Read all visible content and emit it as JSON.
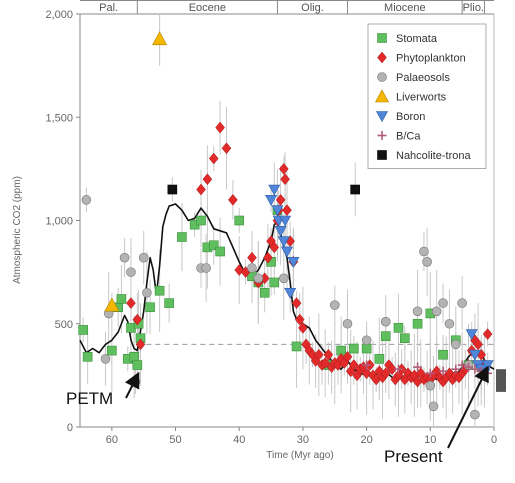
{
  "chart_data": {
    "type": "scatter",
    "xlabel": "Time (Myr ago)",
    "ylabel": "Atmospheric CO2 (ppm)",
    "xlim": [
      65,
      0
    ],
    "ylim": [
      0,
      2000
    ],
    "x_ticks": [
      60,
      50,
      40,
      30,
      20,
      10,
      0
    ],
    "y_ticks": [
      0,
      500,
      1000,
      1500,
      2000
    ],
    "y_tick_labels": [
      "0",
      "500",
      "1,000",
      "1,500",
      "2,000"
    ],
    "grid": false,
    "legend_position": "top-right",
    "epochs": [
      {
        "label": "Pal.",
        "start": 65,
        "end": 56
      },
      {
        "label": "Eocene",
        "start": 56,
        "end": 34
      },
      {
        "label": "Olig.",
        "start": 34,
        "end": 23
      },
      {
        "label": "Miocene",
        "start": 23,
        "end": 5
      },
      {
        "label": "Plio.",
        "start": 5,
        "end": 1.5
      }
    ],
    "reference_line": {
      "y": 400,
      "x_from": 56,
      "x_to": 0,
      "style": "dashed"
    },
    "smooth_curve": {
      "x": [
        65,
        64,
        63,
        62,
        61,
        60,
        59,
        58,
        57.5,
        57,
        56.5,
        56,
        55,
        54.5,
        54,
        53.5,
        53,
        52.5,
        52,
        51.5,
        51,
        50,
        49,
        48,
        47,
        46,
        45,
        44,
        43,
        42,
        41,
        40,
        39,
        38,
        37,
        36,
        35,
        34.5,
        34,
        33.5,
        33,
        32.5,
        32,
        31.5,
        31,
        30,
        29,
        28,
        27,
        26,
        25,
        24,
        23,
        22,
        21,
        20,
        19,
        18,
        17,
        16,
        15,
        14,
        13,
        12,
        11,
        10,
        9,
        8,
        7,
        6,
        5,
        4,
        3,
        2,
        1,
        0
      ],
      "y": [
        420,
        360,
        380,
        360,
        400,
        420,
        460,
        540,
        510,
        420,
        380,
        370,
        560,
        700,
        820,
        760,
        640,
        780,
        970,
        1030,
        1070,
        1080,
        1050,
        1000,
        1010,
        1060,
        1020,
        960,
        950,
        940,
        870,
        800,
        740,
        730,
        760,
        820,
        900,
        980,
        990,
        940,
        870,
        820,
        700,
        560,
        520,
        500,
        480,
        420,
        380,
        340,
        300,
        280,
        320,
        280,
        260,
        250,
        250,
        260,
        270,
        240,
        240,
        240,
        250,
        250,
        240,
        250,
        230,
        240,
        250,
        250,
        290,
        340,
        370,
        350,
        300,
        280
      ]
    },
    "series": [
      {
        "name": "Stomata",
        "marker": "square",
        "color": "#5fbf5f",
        "x": [
          64.5,
          63.8,
          60,
          59,
          58.5,
          57.5,
          57,
          56.5,
          56,
          55.8,
          55.5,
          54,
          52.5,
          51,
          49,
          47,
          46,
          45,
          44,
          43,
          40,
          38,
          37,
          36,
          35,
          34.5,
          34,
          31,
          26,
          24,
          22,
          20,
          18,
          17,
          15,
          14,
          12,
          10,
          8,
          6,
          4,
          2
        ],
        "y": [
          470,
          340,
          370,
          580,
          620,
          330,
          480,
          340,
          300,
          500,
          430,
          580,
          660,
          600,
          920,
          980,
          1000,
          870,
          880,
          850,
          1000,
          730,
          700,
          650,
          800,
          700,
          1050,
          390,
          300,
          370,
          380,
          380,
          330,
          440,
          480,
          430,
          500,
          550,
          350,
          420,
          300,
          290
        ]
      },
      {
        "name": "Phytoplankton",
        "marker": "diamond",
        "color": "#e32a2a",
        "x": [
          57,
          56,
          55.5,
          46,
          45,
          44,
          43,
          42,
          41,
          40,
          39,
          38,
          37,
          36,
          35.5,
          35,
          34.5,
          34,
          33.8,
          33.5,
          33,
          32.8,
          32.5,
          32,
          31.5,
          31,
          30.5,
          30,
          29.5,
          29,
          28.5,
          28,
          27.5,
          27,
          26.5,
          26,
          25.5,
          25,
          24.5,
          24,
          23.5,
          23,
          22.5,
          22,
          21.5,
          21,
          20.5,
          20,
          19.5,
          19,
          18.5,
          18,
          17.5,
          17,
          16.5,
          16,
          15.5,
          15,
          14.5,
          14,
          13.5,
          13,
          12.5,
          12,
          11.5,
          11,
          10.5,
          10,
          9.5,
          9,
          8.5,
          8,
          7.5,
          7,
          6.5,
          6,
          5.5,
          5,
          4.5,
          4,
          3.5,
          3,
          2.5,
          2,
          1.5,
          1
        ],
        "y": [
          600,
          520,
          400,
          1150,
          1200,
          1300,
          1450,
          1350,
          1100,
          760,
          750,
          820,
          700,
          720,
          820,
          900,
          870,
          1000,
          1050,
          1100,
          1250,
          1200,
          1050,
          900,
          800,
          600,
          520,
          480,
          400,
          370,
          350,
          320,
          350,
          300,
          310,
          350,
          290,
          310,
          300,
          330,
          310,
          340,
          270,
          300,
          250,
          280,
          290,
          260,
          300,
          250,
          230,
          270,
          240,
          260,
          300,
          280,
          230,
          250,
          280,
          230,
          260,
          240,
          250,
          220,
          260,
          230,
          240,
          230,
          250,
          270,
          240,
          220,
          240,
          260,
          230,
          250,
          240,
          260,
          280,
          300,
          370,
          420,
          400,
          350,
          300,
          450
        ]
      },
      {
        "name": "Palaeosols",
        "marker": "circle",
        "color": "#b3b3b3",
        "x": [
          64,
          61,
          60.5,
          58,
          57,
          56.3,
          55,
          54.5,
          46,
          45.2,
          38,
          37,
          33,
          25,
          23,
          20,
          17,
          12,
          11,
          10.5,
          10,
          9.5,
          9,
          8,
          7,
          6,
          5,
          4,
          3
        ],
        "y": [
          1100,
          330,
          550,
          820,
          750,
          220,
          820,
          650,
          770,
          770,
          770,
          720,
          720,
          590,
          500,
          420,
          510,
          560,
          850,
          800,
          200,
          100,
          560,
          600,
          500,
          400,
          600,
          300,
          60
        ]
      },
      {
        "name": "Liverworts",
        "marker": "triangle-up",
        "color": "#f5b800",
        "x": [
          60,
          52.5
        ],
        "y": [
          590,
          1880
        ]
      },
      {
        "name": "Boron",
        "marker": "triangle-down",
        "color": "#4f86d9",
        "x": [
          35,
          34.5,
          34,
          33.8,
          33.5,
          33,
          32.8,
          32.5,
          32,
          31.5,
          3.5,
          3,
          2.5,
          2,
          1.5,
          1
        ],
        "y": [
          1100,
          1150,
          1050,
          1000,
          950,
          900,
          1000,
          850,
          650,
          800,
          450,
          350,
          300,
          280,
          260,
          300
        ]
      },
      {
        "name": "B/Ca",
        "marker": "plus",
        "color": "#b05c7a",
        "x": [
          20,
          15,
          12,
          10,
          8,
          6,
          5,
          4,
          3,
          2,
          1
        ],
        "y": [
          300,
          280,
          290,
          260,
          270,
          280,
          300,
          290,
          280,
          270,
          260
        ]
      },
      {
        "name": "Nahcolite-trona",
        "marker": "square",
        "color": "#111111",
        "x": [
          50.5,
          21.8
        ],
        "y": [
          1150,
          1150
        ]
      }
    ],
    "present_bar": {
      "y_from": 170,
      "y_to": 280
    },
    "annotations": [
      {
        "text": "PETM",
        "arrow_x": 55.5,
        "arrow_y": 260
      },
      {
        "text": "Present",
        "arrow_x": 0.5,
        "arrow_y": 300
      }
    ]
  }
}
